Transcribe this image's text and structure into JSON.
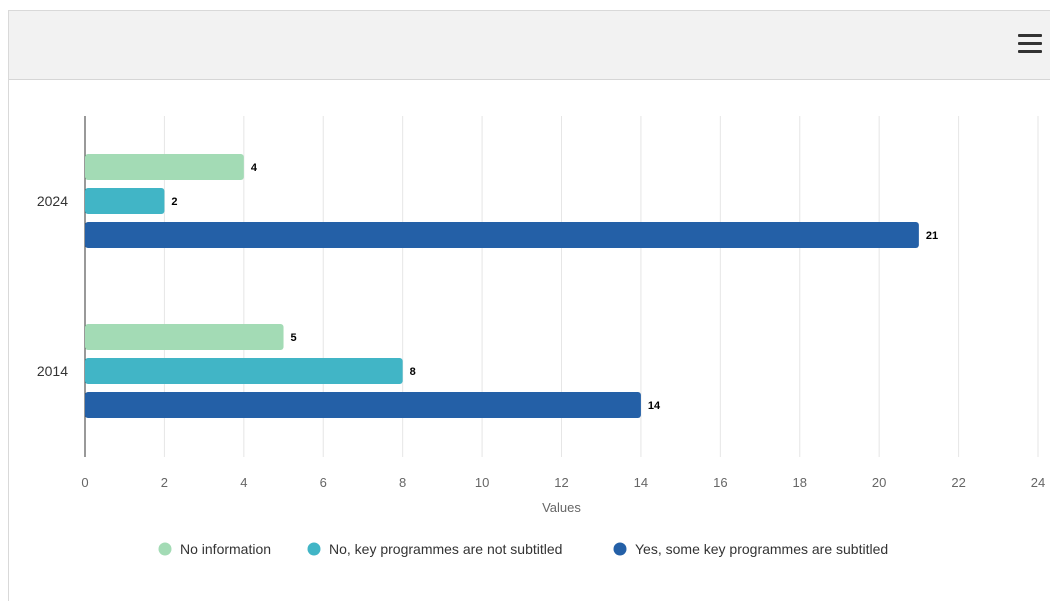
{
  "toolbar": {
    "menu_icon": "hamburger-menu-icon"
  },
  "chart_data": {
    "type": "bar",
    "orientation": "horizontal",
    "categories": [
      "2024",
      "2014"
    ],
    "series": [
      {
        "name": "No information",
        "values": [
          4,
          5
        ],
        "color": "#a3dbb5"
      },
      {
        "name": "No, key programmes are not subtitled",
        "values": [
          2,
          8
        ],
        "color": "#41b5c6"
      },
      {
        "name": "Yes, some key programmes are subtitled",
        "values": [
          21,
          14
        ],
        "color": "#2460a7"
      }
    ],
    "xlabel": "Values",
    "ylabel": "",
    "xlim": [
      0,
      24
    ],
    "xticks": [
      0,
      2,
      4,
      6,
      8,
      10,
      12,
      14,
      16,
      18,
      20,
      22,
      24
    ],
    "grid": true,
    "legend_position": "bottom"
  }
}
